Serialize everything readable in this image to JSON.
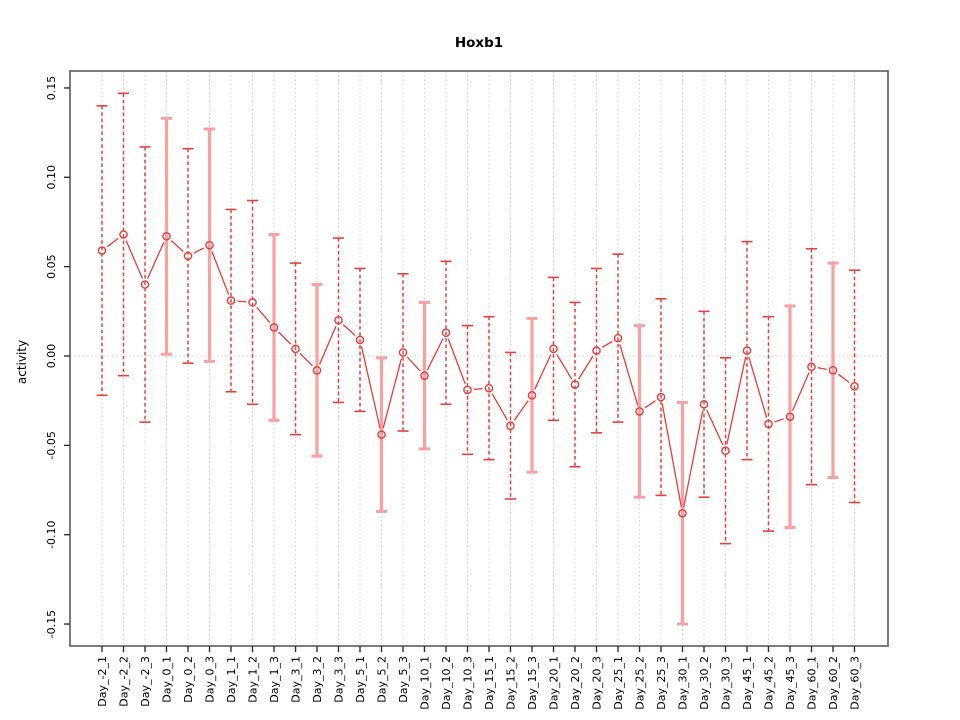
{
  "window": {
    "background": "#ffffff"
  },
  "chart_data": {
    "type": "line",
    "subtype": "means-with-error-bars",
    "title": "Hoxb1",
    "xlabel": "",
    "ylabel": "activity",
    "ylim": [
      -0.162,
      0.162
    ],
    "yticks": [
      0.15,
      0.1,
      0.05,
      0.0,
      -0.05,
      -0.1,
      -0.15
    ],
    "ytick_labels": [
      "0.15",
      "0.10",
      "0.05",
      "0.00",
      "-0.05",
      "-0.10",
      "-0.15"
    ],
    "grid": "vertical dotted gridline per category, dotted horizontal line at y=0",
    "legend_position": "none",
    "categories": [
      "Day_-2_1",
      "Day_-2_2",
      "Day_-2_3",
      "Day_0_1",
      "Day_0_2",
      "Day_0_3",
      "Day_1_1",
      "Day_1_2",
      "Day_1_3",
      "Day_3_1",
      "Day_3_2",
      "Day_3_3",
      "Day_5_1",
      "Day_5_2",
      "Day_5_3",
      "Day_10_1",
      "Day_10_2",
      "Day_10_3",
      "Day_15_1",
      "Day_15_2",
      "Day_15_3",
      "Day_20_1",
      "Day_20_2",
      "Day_20_3",
      "Day_25_1",
      "Day_25_2",
      "Day_25_3",
      "Day_30_1",
      "Day_30_2",
      "Day_30_3",
      "Day_45_1",
      "Day_45_2",
      "Day_45_3",
      "Day_60_1",
      "Day_60_2",
      "Day_60_3"
    ],
    "series": [
      {
        "name": "activity",
        "values": [
          0.059,
          0.068,
          0.04,
          0.067,
          0.056,
          0.062,
          0.031,
          0.03,
          0.016,
          0.004,
          -0.008,
          0.02,
          0.009,
          -0.044,
          0.002,
          -0.011,
          0.013,
          -0.019,
          -0.018,
          -0.039,
          -0.022,
          0.004,
          -0.016,
          0.003,
          0.01,
          -0.031,
          -0.023,
          -0.088,
          -0.027,
          -0.053,
          0.003,
          -0.038,
          -0.034,
          -0.006,
          -0.008,
          -0.017
        ],
        "error_upper": [
          0.14,
          0.147,
          0.117,
          0.133,
          0.116,
          0.127,
          0.082,
          0.087,
          0.068,
          0.052,
          0.04,
          0.066,
          0.049,
          -0.001,
          0.046,
          0.03,
          0.053,
          0.017,
          0.022,
          0.002,
          0.021,
          0.044,
          0.03,
          0.049,
          0.057,
          0.017,
          0.032,
          -0.026,
          0.025,
          -0.001,
          0.064,
          0.022,
          0.028,
          0.06,
          0.052,
          0.048
        ],
        "error_lower": [
          -0.022,
          -0.011,
          -0.037,
          0.001,
          -0.004,
          -0.003,
          -0.02,
          -0.027,
          -0.036,
          -0.044,
          -0.056,
          -0.026,
          -0.031,
          -0.087,
          -0.042,
          -0.052,
          -0.027,
          -0.055,
          -0.058,
          -0.08,
          -0.065,
          -0.036,
          -0.062,
          -0.043,
          -0.037,
          -0.079,
          -0.078,
          -0.15,
          -0.079,
          -0.105,
          -0.058,
          -0.098,
          -0.096,
          -0.072,
          -0.068,
          -0.082
        ],
        "bar_styles": [
          "dashed",
          "dashed",
          "dashed",
          "solid-pink",
          "dashed",
          "solid-pink",
          "dashed",
          "dashed",
          "solid-pink",
          "dashed",
          "solid-pink",
          "dashed",
          "dashed",
          "solid-pink",
          "dashed",
          "solid-pink",
          "dashed",
          "dashed",
          "dashed",
          "dashed",
          "solid-pink",
          "dashed",
          "dashed",
          "dashed",
          "dashed",
          "solid-pink",
          "dashed",
          "solid-pink",
          "dashed",
          "dashed",
          "dashed",
          "dashed",
          "solid-pink",
          "dashed",
          "solid-pink",
          "dashed"
        ]
      }
    ],
    "marker": "open-circle",
    "colors": {
      "point": "#e83c3c",
      "line": "#e83c3c",
      "error_bar_dashed": "#e8413c",
      "error_bar_solid": "#f9a0a0",
      "grid": "#d4d4d4",
      "axis_box": "#5c5c5c",
      "tick": "#333333",
      "text": "#000000",
      "background": "#ffffff"
    }
  }
}
